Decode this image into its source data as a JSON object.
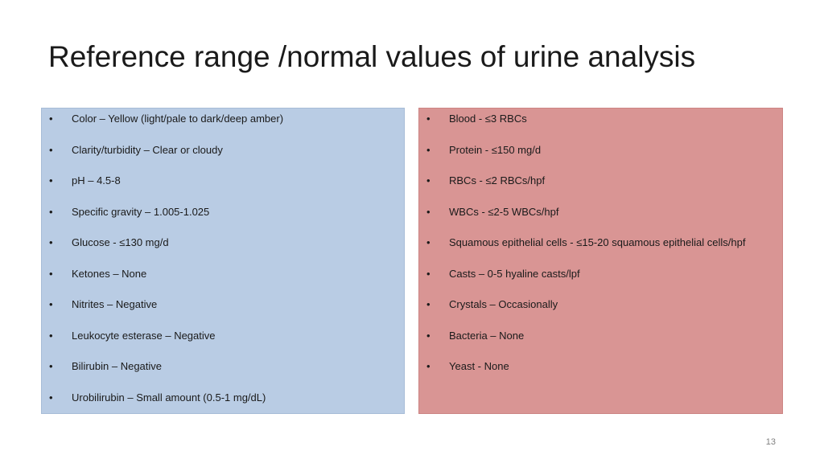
{
  "slide": {
    "title": "Reference range /normal values of urine analysis",
    "page_number": "13",
    "bullet_glyph": "•",
    "left_panel": {
      "color": "#b9cce4",
      "items": [
        "Color – Yellow (light/pale to dark/deep amber)",
        "Clarity/turbidity – Clear or cloudy",
        "pH – 4.5-8",
        "Specific gravity – 1.005-1.025",
        "Glucose - ≤130 mg/d",
        "Ketones – None",
        "Nitrites – Negative",
        "Leukocyte esterase – Negative",
        "Bilirubin – Negative",
        "Urobilirubin – Small amount (0.5-1 mg/dL)"
      ]
    },
    "right_panel": {
      "color": "#d99594",
      "items": [
        "Blood - ≤3 RBCs",
        "Protein - ≤150 mg/d",
        "RBCs - ≤2 RBCs/hpf",
        "WBCs - ≤2-5 WBCs/hpf",
        "Squamous epithelial cells - ≤15-20 squamous epithelial cells/hpf",
        "Casts – 0-5 hyaline casts/lpf",
        "Crystals – Occasionally",
        "Bacteria – None",
        "Yeast - None"
      ]
    }
  }
}
